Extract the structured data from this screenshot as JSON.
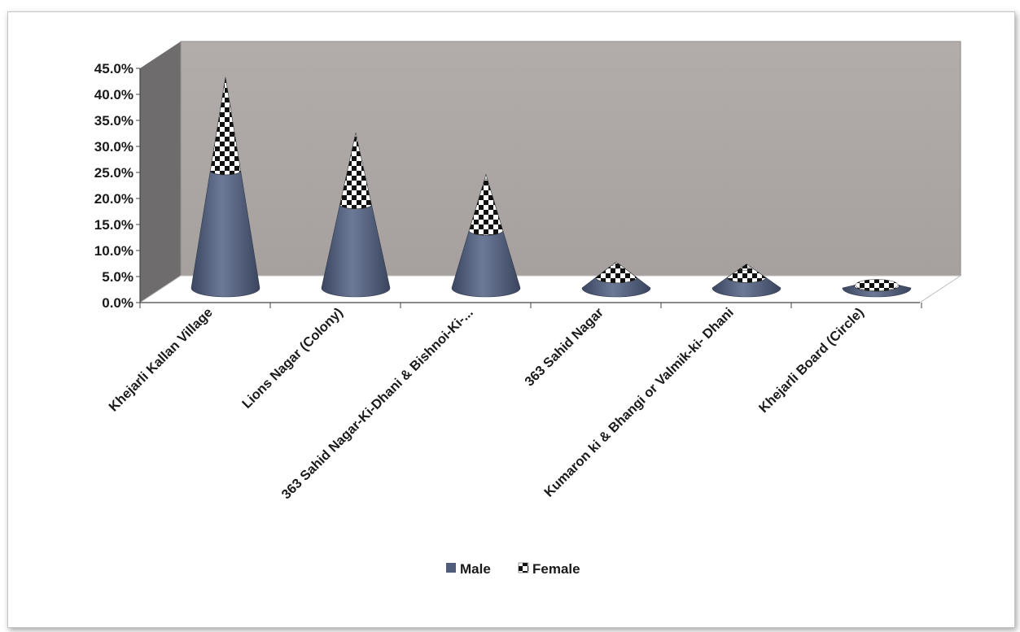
{
  "chart_data": {
    "type": "bar",
    "style": "3d-stacked-cone",
    "categories": [
      "Khejarli Kallan Village",
      "Lions Nagar (Colony)",
      "363 Sahid Nagar-Ki-Dhani & Bishnoi-Ki-...",
      "363 Sahid Nagar",
      "Kumaron ki & Bhangi or Valmik-ki- Dhani",
      "Khejarli Board (Circle)"
    ],
    "series": [
      {
        "name": "Male",
        "values": [
          22.5,
          16.0,
          11.0,
          2.0,
          2.0,
          0.5
        ]
      },
      {
        "name": "Female",
        "values": [
          18.0,
          13.8,
          10.8,
          3.0,
          2.6,
          1.0
        ]
      }
    ],
    "ylim": [
      0,
      45
    ],
    "y_ticks": [
      "0.0%",
      "5.0%",
      "10.0%",
      "15.0%",
      "20.0%",
      "25.0%",
      "30.0%",
      "35.0%",
      "40.0%",
      "45.0%"
    ],
    "grid": false,
    "legend": "bottom",
    "colors": {
      "male": "#4f5d7b",
      "female_pattern": "checkerboard",
      "back_wall": "#aca6a4",
      "side_wall": "#6e6c6c"
    }
  }
}
